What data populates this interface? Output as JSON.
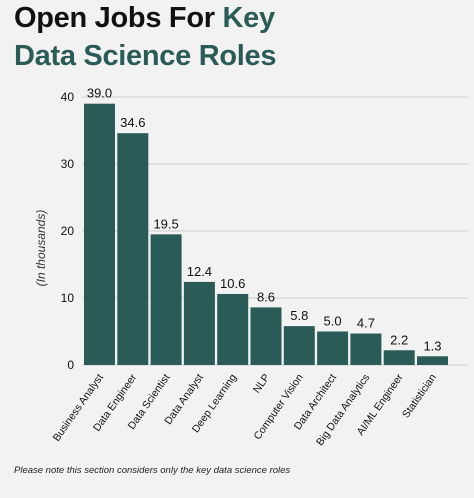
{
  "title": {
    "part1": "Open Jobs For ",
    "part1_accent": "Key",
    "line2": "Data Science Roles"
  },
  "footnote": "Please note this section considers only the key data science roles",
  "colors": {
    "bar": "#2b5b56",
    "title_accent": "#2b5b56",
    "background": "#f2f2f2",
    "grid": "#cfcfcf"
  },
  "chart_data": {
    "type": "bar",
    "categories": [
      "Business Analyst",
      "Data Engineer",
      "Data Scientist",
      "Data Analyst",
      "Deep Learning",
      "NLP",
      "Computer Vision",
      "Data Architect",
      "Big Data Analytics",
      "AI/ML Engineer",
      "Statistician"
    ],
    "values": [
      39.0,
      34.6,
      19.5,
      12.4,
      10.6,
      8.6,
      5.8,
      5.0,
      4.7,
      2.2,
      1.3
    ],
    "value_labels": [
      "39.0",
      "34.6",
      "19.5",
      "12.4",
      "10.6",
      "8.6",
      "5.8",
      "5.0",
      "4.7",
      "2.2",
      "1.3"
    ],
    "ylabel": "(In thousands)",
    "ylim": [
      0,
      40
    ],
    "yticks": [
      0,
      10,
      20,
      30,
      40
    ],
    "ytick_labels": [
      "0",
      "10",
      "20",
      "30",
      "40"
    ],
    "grid": true
  }
}
